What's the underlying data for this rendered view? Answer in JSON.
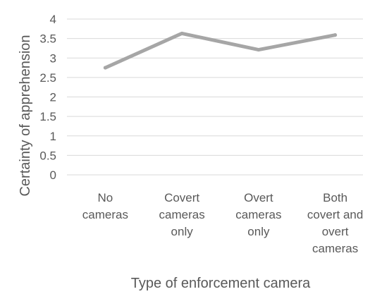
{
  "chart_data": {
    "type": "line",
    "title": "",
    "xlabel": "Type of enforcement camera",
    "ylabel": "Certainty of apprehension",
    "categories": [
      [
        "No",
        "cameras"
      ],
      [
        "Covert",
        "cameras",
        "only"
      ],
      [
        "Overt",
        "cameras",
        "only"
      ],
      [
        "Both",
        "covert and",
        "overt",
        "cameras"
      ]
    ],
    "series": [
      {
        "values": [
          2.75,
          3.63,
          3.21,
          3.59
        ]
      }
    ],
    "ylim": [
      0,
      4
    ],
    "yticks": [
      "0",
      "0.5",
      "1",
      "1.5",
      "2",
      "2.5",
      "3",
      "3.5",
      "4"
    ],
    "grid": true,
    "legend": "none",
    "line_color": "#a6a6a6"
  }
}
